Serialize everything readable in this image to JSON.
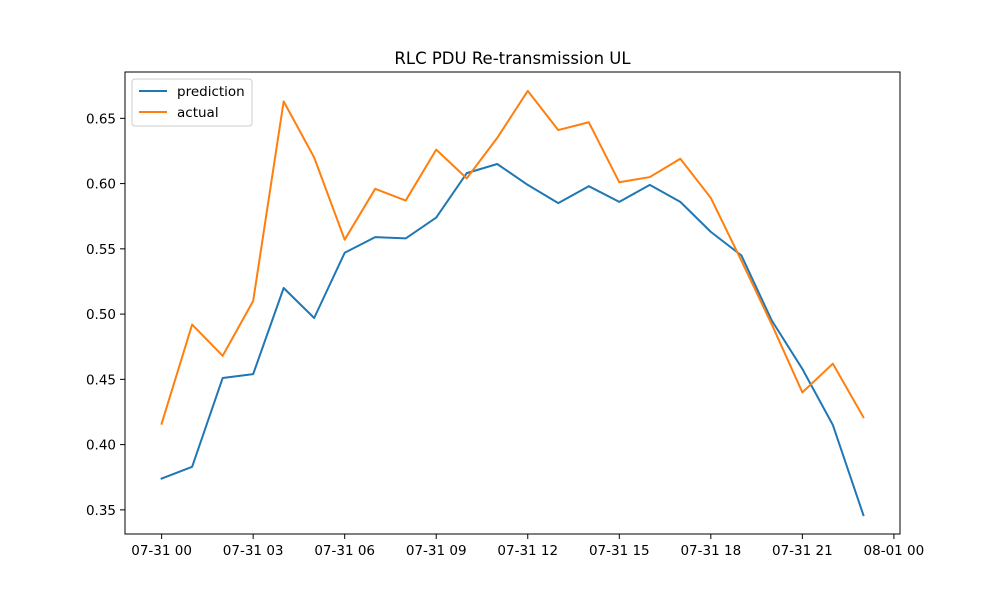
{
  "chart_data": {
    "type": "line",
    "title": "RLC PDU Re-transmission UL",
    "xlabel": "",
    "ylabel": "",
    "x": [
      "07-31 00",
      "07-31 01",
      "07-31 02",
      "07-31 03",
      "07-31 04",
      "07-31 05",
      "07-31 06",
      "07-31 07",
      "07-31 08",
      "07-31 09",
      "07-31 10",
      "07-31 11",
      "07-31 12",
      "07-31 13",
      "07-31 14",
      "07-31 15",
      "07-31 16",
      "07-31 17",
      "07-31 18",
      "07-31 19",
      "07-31 20",
      "07-31 21",
      "07-31 22",
      "07-31 23"
    ],
    "x_hours": [
      0,
      1,
      2,
      3,
      4,
      5,
      6,
      7,
      8,
      9,
      10,
      11,
      12,
      13,
      14,
      15,
      16,
      17,
      18,
      19,
      20,
      21,
      22,
      23
    ],
    "xlim": [
      -1.2,
      24.2
    ],
    "xticks": [
      {
        "hour": 0,
        "label": "07-31 00"
      },
      {
        "hour": 3,
        "label": "07-31 03"
      },
      {
        "hour": 6,
        "label": "07-31 06"
      },
      {
        "hour": 9,
        "label": "07-31 09"
      },
      {
        "hour": 12,
        "label": "07-31 12"
      },
      {
        "hour": 15,
        "label": "07-31 15"
      },
      {
        "hour": 18,
        "label": "07-31 18"
      },
      {
        "hour": 21,
        "label": "07-31 21"
      },
      {
        "hour": 24,
        "label": "08-01 00"
      }
    ],
    "ylim": [
      0.3315,
      0.6855
    ],
    "yticks": [
      {
        "value": 0.35,
        "label": "0.35"
      },
      {
        "value": 0.4,
        "label": "0.40"
      },
      {
        "value": 0.45,
        "label": "0.45"
      },
      {
        "value": 0.5,
        "label": "0.50"
      },
      {
        "value": 0.55,
        "label": "0.55"
      },
      {
        "value": 0.6,
        "label": "0.60"
      },
      {
        "value": 0.65,
        "label": "0.65"
      }
    ],
    "grid": false,
    "legend_position": "upper-left",
    "series": [
      {
        "name": "prediction",
        "color": "#1f77b4",
        "values": [
          0.374,
          0.383,
          0.451,
          0.454,
          0.52,
          0.497,
          0.547,
          0.559,
          0.558,
          0.574,
          0.608,
          0.615,
          0.599,
          0.585,
          0.598,
          0.586,
          0.599,
          0.586,
          0.563,
          0.545,
          0.495,
          0.458,
          0.415,
          0.346
        ]
      },
      {
        "name": "actual",
        "color": "#ff7f0e",
        "values": [
          0.416,
          0.492,
          0.468,
          0.51,
          0.663,
          0.62,
          0.557,
          0.596,
          0.587,
          0.626,
          0.604,
          0.635,
          0.671,
          0.641,
          0.647,
          0.601,
          0.605,
          0.619,
          0.589,
          0.541,
          0.492,
          0.44,
          0.462,
          0.421
        ]
      }
    ]
  }
}
